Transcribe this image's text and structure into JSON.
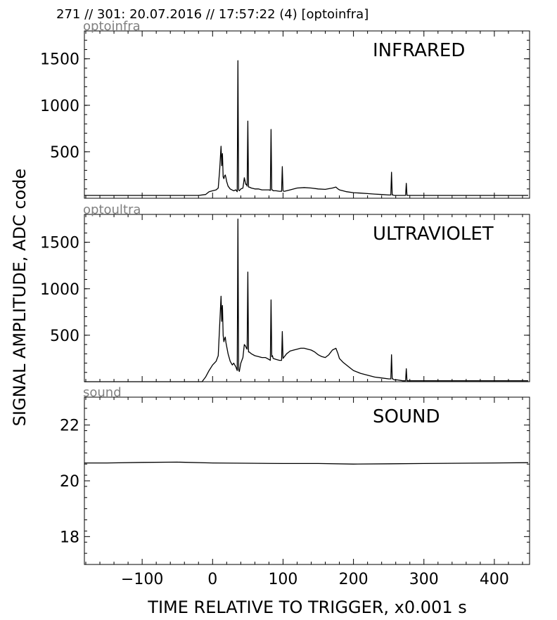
{
  "header": "271 // 301:   20.07.2016 // 17:57:22 (4)  [optoinfra]",
  "chart_data": [
    {
      "type": "line",
      "tag": "optoinfra",
      "title": "INFRARED",
      "ylim": [
        0,
        1800
      ],
      "yticks": [
        500,
        1000,
        1500
      ],
      "x": [
        -182,
        -100,
        -20,
        -10,
        -5,
        0,
        5,
        8,
        10,
        12,
        13,
        14,
        15,
        16,
        17,
        18,
        19,
        20,
        22,
        25,
        30,
        33,
        35,
        36,
        37,
        38,
        40,
        43,
        45,
        47,
        48,
        49,
        50,
        51,
        52,
        55,
        60,
        65,
        70,
        75,
        80,
        82,
        83,
        84,
        85,
        86,
        90,
        95,
        98,
        99,
        100,
        101,
        102,
        105,
        110,
        120,
        130,
        140,
        150,
        160,
        170,
        175,
        178,
        180,
        185,
        190,
        200,
        210,
        220,
        230,
        240,
        250,
        252,
        253,
        254,
        255,
        256,
        258,
        262,
        270,
        273,
        274,
        275,
        276,
        277,
        278,
        280,
        290,
        300,
        320,
        350,
        400,
        448
      ],
      "y": [
        30,
        30,
        30,
        40,
        70,
        80,
        90,
        110,
        300,
        560,
        350,
        480,
        230,
        210,
        240,
        250,
        220,
        180,
        130,
        100,
        80,
        90,
        70,
        1480,
        90,
        80,
        100,
        110,
        220,
        150,
        150,
        130,
        830,
        120,
        120,
        110,
        100,
        100,
        90,
        90,
        90,
        85,
        740,
        90,
        90,
        80,
        80,
        75,
        75,
        340,
        80,
        75,
        75,
        80,
        90,
        110,
        115,
        110,
        100,
        95,
        110,
        120,
        100,
        90,
        80,
        70,
        60,
        55,
        50,
        45,
        40,
        35,
        35,
        35,
        280,
        35,
        35,
        30,
        30,
        30,
        30,
        30,
        160,
        30,
        30,
        30,
        30,
        30,
        30,
        30,
        30,
        30,
        30
      ]
    },
    {
      "type": "line",
      "tag": "optoultra",
      "title": "ULTRAVIOLET",
      "ylim": [
        0,
        1800
      ],
      "yticks": [
        500,
        1000,
        1500
      ],
      "x": [
        -182,
        -100,
        -15,
        -10,
        -5,
        0,
        5,
        8,
        10,
        12,
        13,
        14,
        15,
        16,
        17,
        18,
        19,
        20,
        22,
        25,
        28,
        30,
        33,
        35,
        36,
        37,
        38,
        40,
        43,
        45,
        47,
        48,
        49,
        50,
        51,
        52,
        55,
        60,
        65,
        70,
        75,
        80,
        82,
        83,
        84,
        85,
        86,
        90,
        95,
        98,
        99,
        100,
        101,
        102,
        105,
        110,
        115,
        120,
        125,
        130,
        135,
        140,
        145,
        150,
        155,
        160,
        165,
        170,
        175,
        178,
        180,
        185,
        190,
        195,
        200,
        210,
        220,
        230,
        240,
        250,
        252,
        253,
        254,
        255,
        256,
        258,
        262,
        270,
        273,
        274,
        275,
        276,
        277,
        278,
        280,
        290,
        300,
        320,
        350,
        400,
        448
      ],
      "y": [
        0,
        0,
        0,
        50,
        120,
        180,
        220,
        280,
        600,
        920,
        650,
        820,
        500,
        430,
        460,
        480,
        420,
        380,
        300,
        220,
        180,
        200,
        160,
        120,
        1750,
        130,
        110,
        200,
        260,
        400,
        380,
        360,
        350,
        1180,
        320,
        320,
        300,
        280,
        270,
        260,
        260,
        240,
        230,
        880,
        270,
        280,
        250,
        240,
        230,
        230,
        540,
        250,
        260,
        270,
        300,
        330,
        340,
        350,
        360,
        360,
        350,
        340,
        320,
        290,
        270,
        260,
        290,
        340,
        360,
        300,
        250,
        210,
        180,
        150,
        120,
        90,
        70,
        50,
        40,
        30,
        30,
        30,
        290,
        30,
        30,
        20,
        20,
        10,
        10,
        10,
        140,
        10,
        10,
        10,
        10,
        10,
        10,
        10,
        10,
        10,
        10
      ]
    },
    {
      "type": "line",
      "tag": "sound",
      "title": "SOUND",
      "ylim": [
        17,
        23
      ],
      "yticks": [
        18,
        20,
        22
      ],
      "x": [
        -182,
        -150,
        -100,
        -50,
        0,
        50,
        100,
        150,
        200,
        250,
        300,
        350,
        400,
        448
      ],
      "y": [
        20.64,
        20.64,
        20.66,
        20.67,
        20.64,
        20.63,
        20.62,
        20.62,
        20.6,
        20.61,
        20.62,
        20.63,
        20.64,
        20.65
      ]
    }
  ],
  "xaxis": {
    "xlim": [
      -182,
      450
    ],
    "ticks": [
      -100,
      0,
      100,
      200,
      300,
      400
    ],
    "ticklabels": [
      "−100",
      "0",
      "100",
      "200",
      "300",
      "400"
    ],
    "label": "TIME RELATIVE TO TRIGGER,   x0.001 s"
  },
  "ylabel": "SIGNAL AMPLITUDE,  ADC code"
}
